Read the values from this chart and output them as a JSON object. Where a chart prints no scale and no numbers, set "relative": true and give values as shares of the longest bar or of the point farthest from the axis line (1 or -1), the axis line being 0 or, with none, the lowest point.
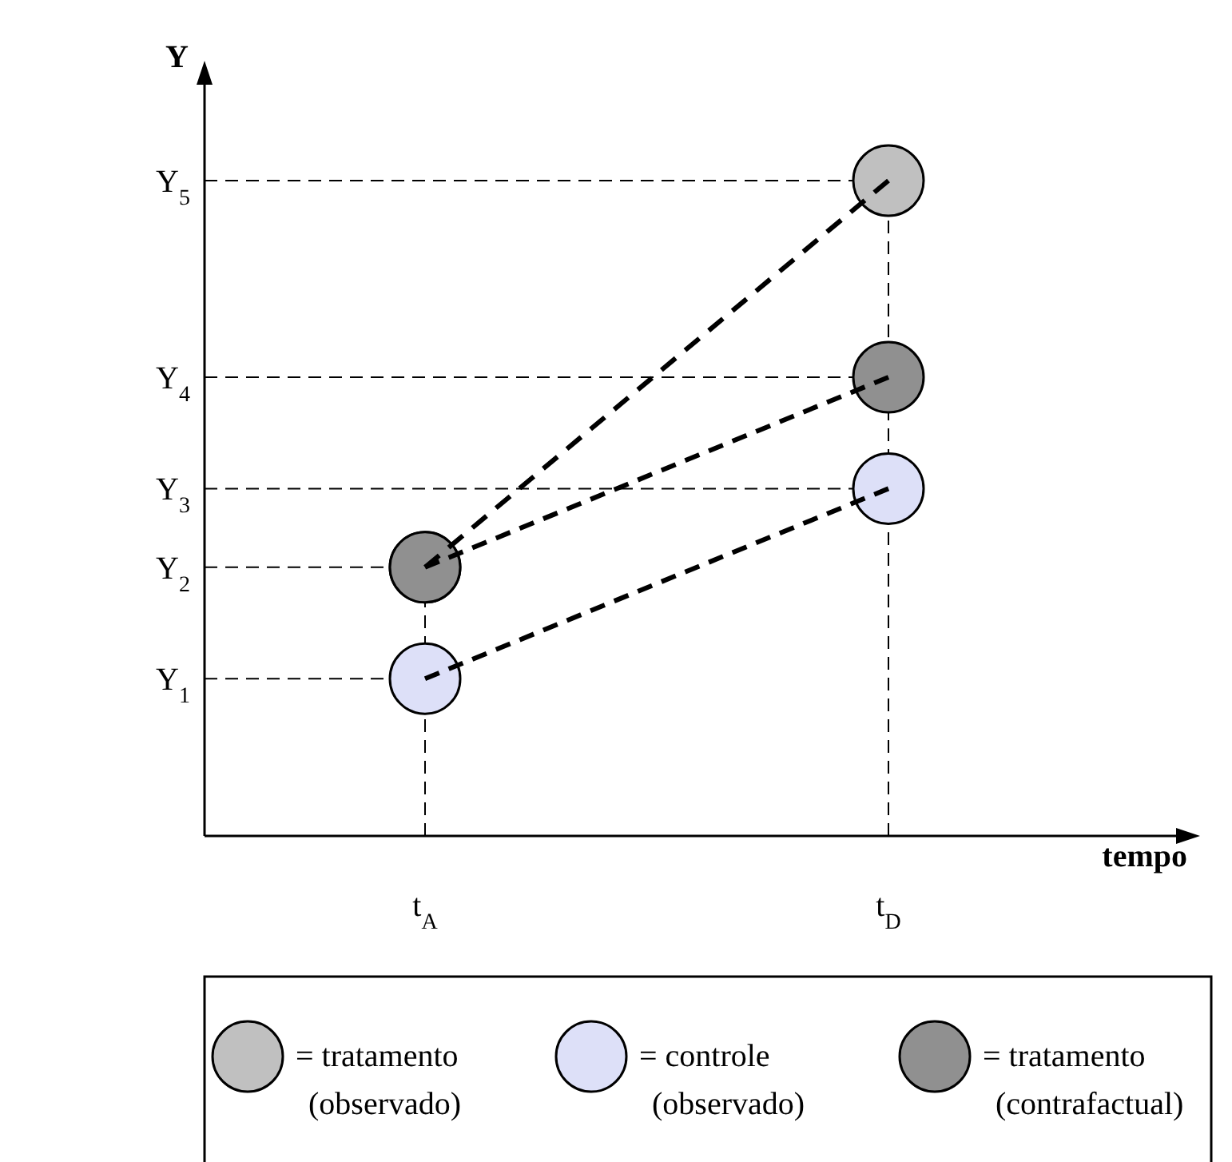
{
  "chart_data": {
    "type": "line",
    "relative": true,
    "annotations": [
      "tempo"
    ],
    "ylabel": "Y",
    "categories": [
      "t$_{A}$",
      "t$_{D}$"
    ],
    "marker": "circle",
    "line_style": "dashed",
    "legend": "bottom",
    "series": [
      {
        "name": "= tratamento (observado)",
        "color": "#c0c0c0",
        "values": [
          0.41,
          1
        ]
      },
      {
        "name": "= controle (observado)",
        "color": "#dde0f8",
        "values": [
          0.24,
          0.53
        ]
      },
      {
        "name": "= tratamento (contrafactual)",
        "color": "#909090",
        "values": [
          0.41,
          0.7
        ]
      }
    ],
    "ref_lines": [
      {
        "axis": "y",
        "value": 0.24,
        "label": "Y$_{1}$",
        "line_style": "dashed"
      },
      {
        "axis": "y",
        "value": 0.41,
        "label": "Y$_{2}$",
        "line_style": "dashed"
      },
      {
        "axis": "y",
        "value": 0.53,
        "label": "Y$_{3}$",
        "line_style": "dashed"
      },
      {
        "axis": "y",
        "value": 0.7,
        "label": "Y$_{4}$",
        "line_style": "dashed"
      },
      {
        "axis": "y",
        "value": 1,
        "label": "Y$_{5}$",
        "line_style": "dashed"
      },
      {
        "axis": "x",
        "value": "t$_{A}$",
        "line_style": "dashed"
      },
      {
        "axis": "x",
        "value": "t$_{D}$",
        "line_style": "dashed"
      }
    ]
  }
}
